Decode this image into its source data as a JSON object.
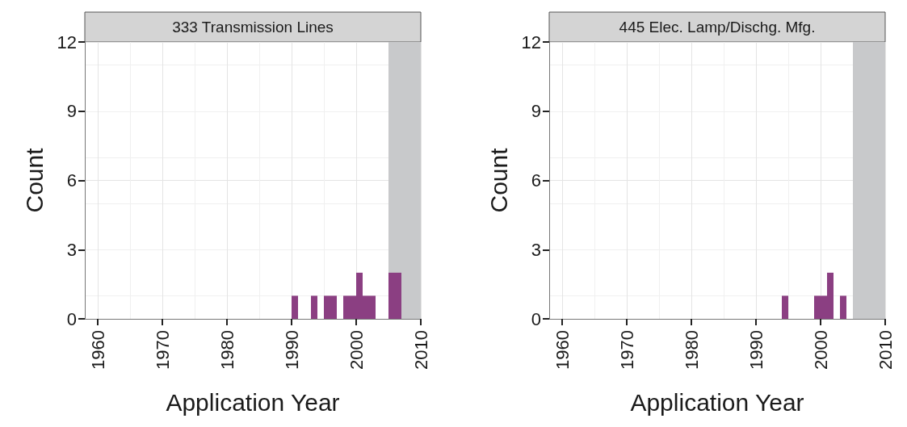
{
  "chart_data": [
    {
      "type": "histogram",
      "title": "333 Transmission Lines",
      "xlabel": "Application Year",
      "ylabel": "Count",
      "bins": [
        1990,
        1991,
        1992,
        1993,
        1994,
        1995,
        1996,
        1997,
        1998,
        1999,
        2000,
        2001,
        2002,
        2003,
        2004,
        2005,
        2006,
        2007
      ],
      "values": [
        1,
        0,
        0,
        1,
        0,
        1,
        1,
        0,
        1,
        1,
        2,
        1,
        1,
        0,
        0,
        2,
        2
      ],
      "color": "#8b3f82",
      "xlim": [
        1958,
        2010
      ],
      "xticks": [
        1960,
        1970,
        1980,
        1990,
        2000,
        2010
      ],
      "ylim": [
        0,
        12
      ],
      "yticks": [
        0,
        3,
        6,
        9,
        12
      ],
      "bands": [
        {
          "axis": "x",
          "from": 2005,
          "to": 2010,
          "color": "#c8c9cb"
        }
      ],
      "grid": true
    },
    {
      "type": "histogram",
      "title": "445 Elec. Lamp/Dischg. Mfg.",
      "xlabel": "Application Year",
      "ylabel": "Count",
      "bins": [
        1994,
        1995,
        1996,
        1997,
        1998,
        1999,
        2000,
        2001,
        2002,
        2003,
        2004
      ],
      "values": [
        1,
        0,
        0,
        0,
        0,
        1,
        1,
        2,
        0,
        1
      ],
      "color": "#8b3f82",
      "xlim": [
        1958,
        2010
      ],
      "xticks": [
        1960,
        1970,
        1980,
        1990,
        2000,
        2010
      ],
      "ylim": [
        0,
        12
      ],
      "yticks": [
        0,
        3,
        6,
        9,
        12
      ],
      "bands": [
        {
          "axis": "x",
          "from": 2005,
          "to": 2010,
          "color": "#c8c9cb"
        }
      ],
      "grid": true
    }
  ]
}
